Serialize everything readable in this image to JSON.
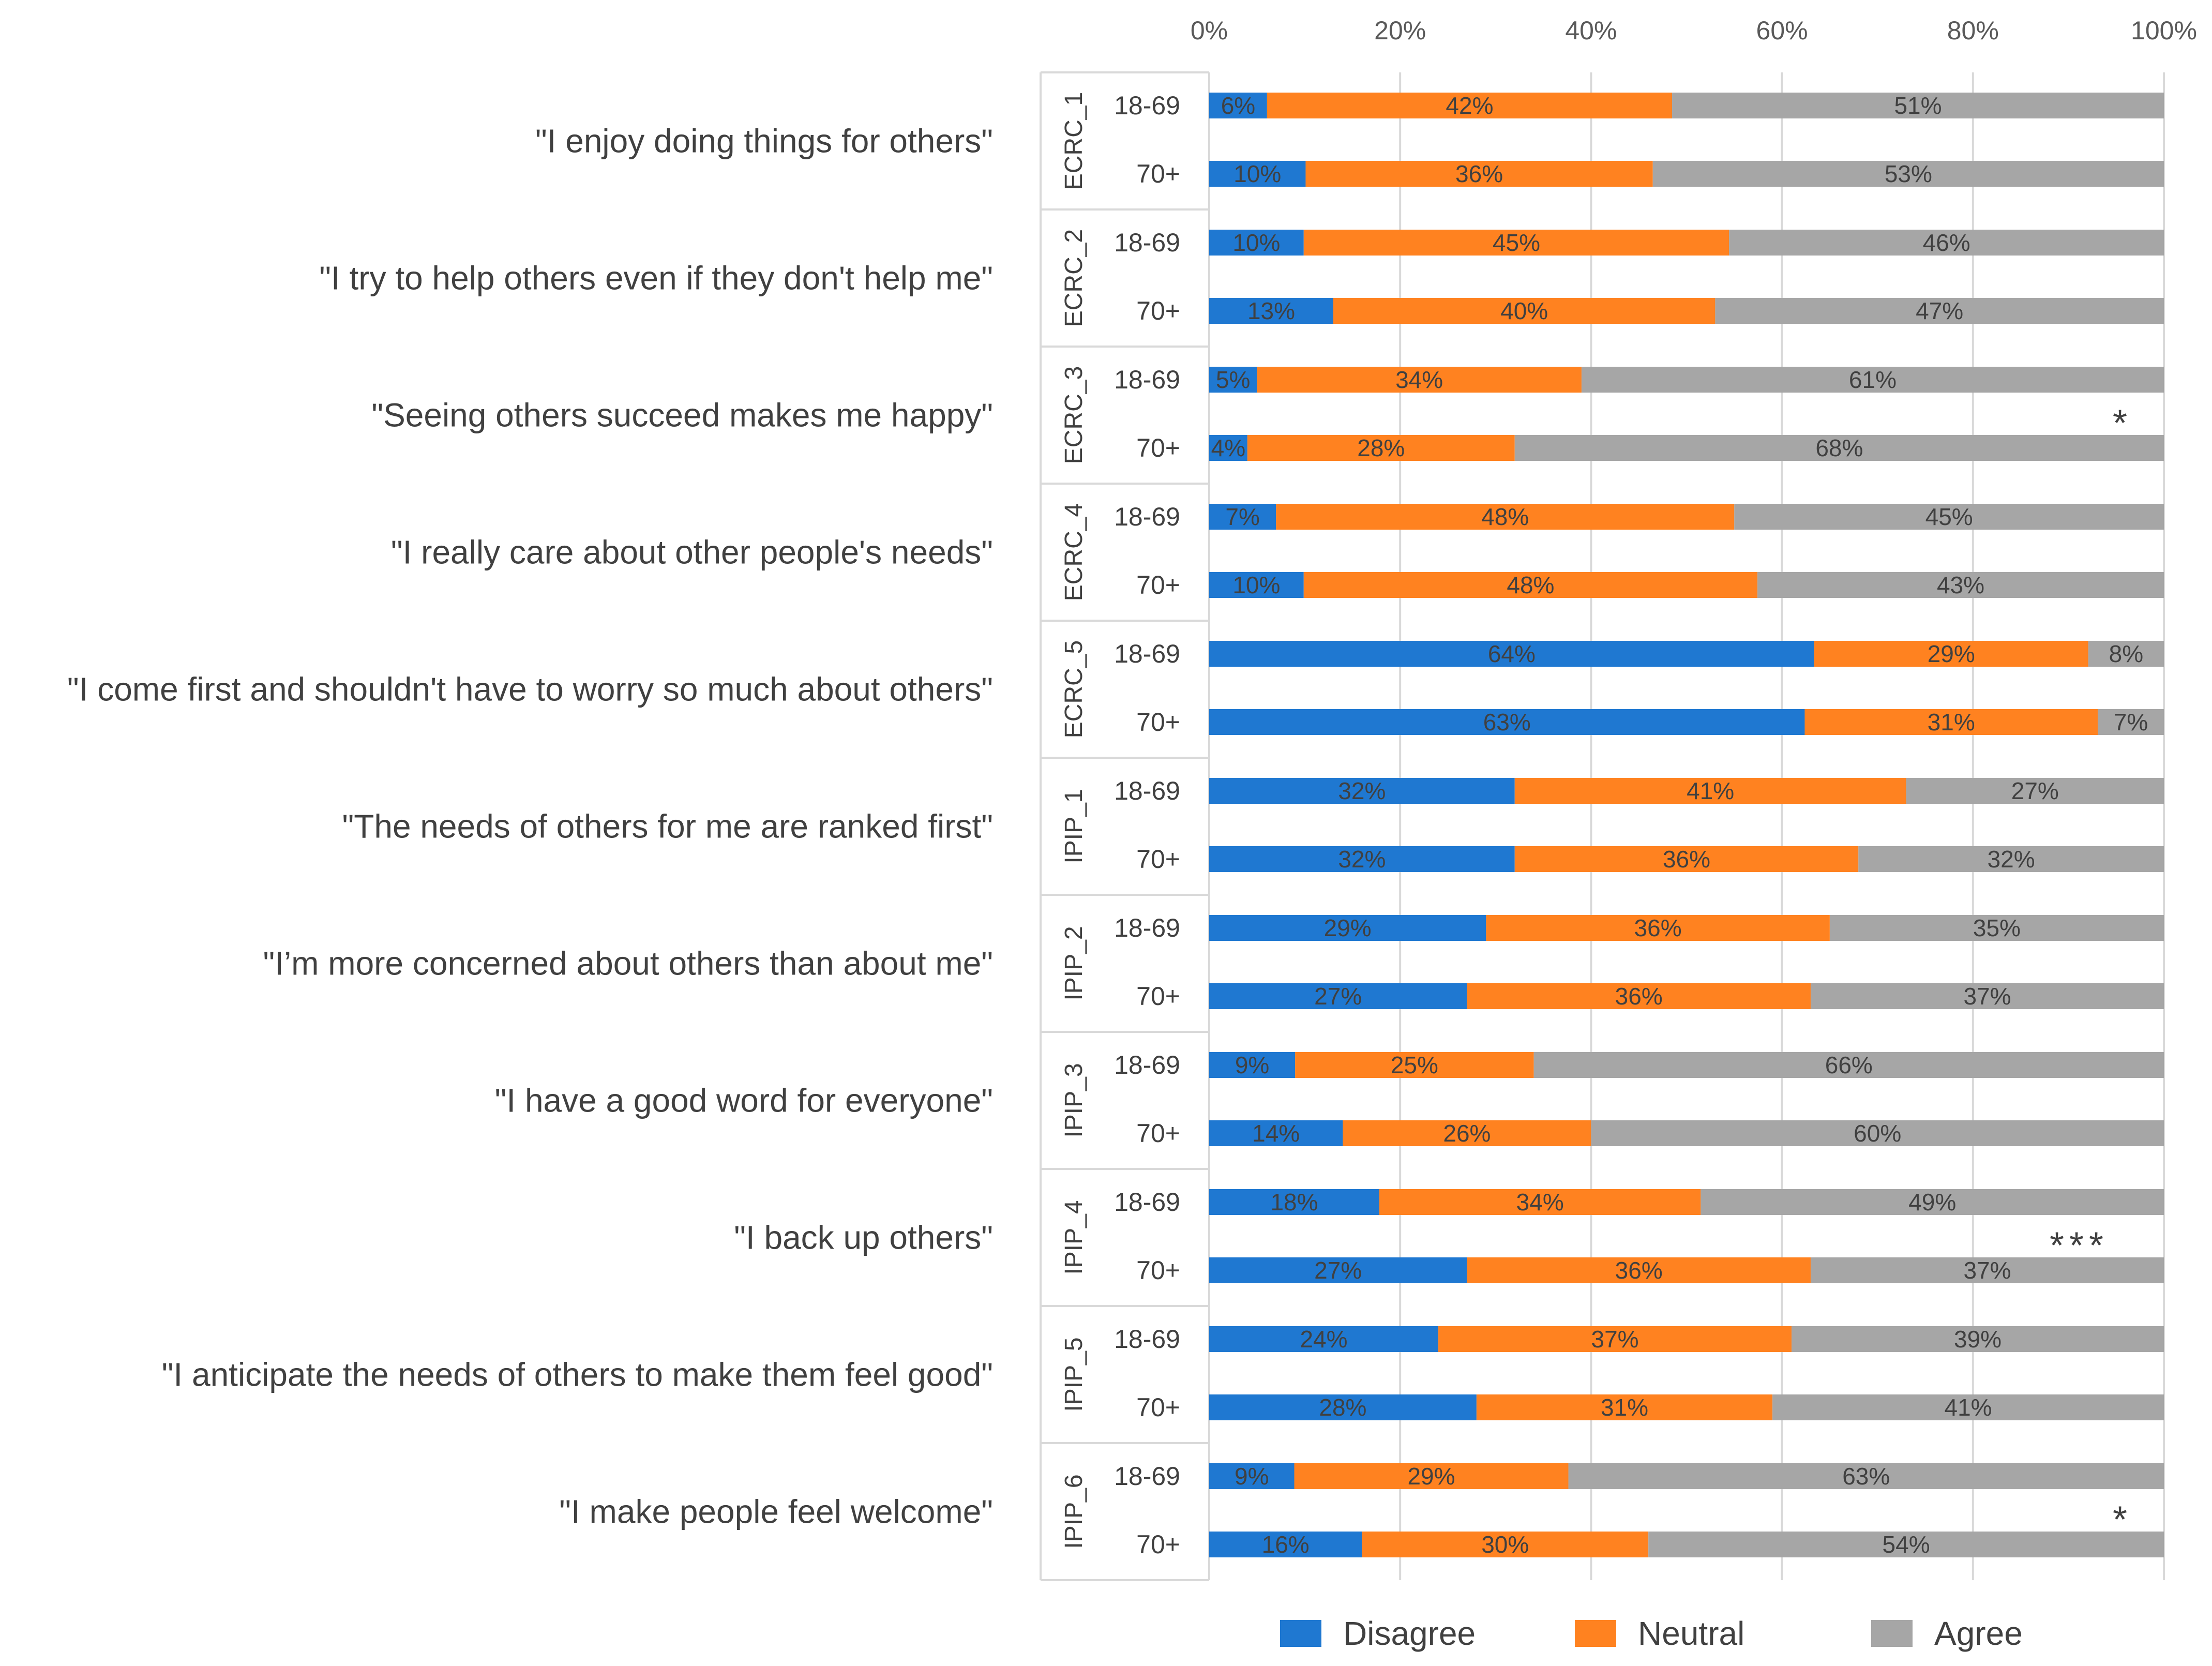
{
  "chart_data": {
    "type": "bar",
    "orientation": "horizontal",
    "stacked": "percent",
    "title": "",
    "xlabel": "",
    "ylabel": "",
    "xlim": [
      0,
      100
    ],
    "x_ticks": [
      "0%",
      "20%",
      "40%",
      "60%",
      "80%",
      "100%"
    ],
    "grid": true,
    "legend_position": "bottom",
    "series": [
      {
        "name": "Disagree",
        "color": "#1f78d1"
      },
      {
        "name": "Neutral",
        "color": "#ff8220"
      },
      {
        "name": "Agree",
        "color": "#a6a6a6"
      }
    ],
    "items": [
      {
        "item": "ECRC_1",
        "statement": "\"I enjoy doing things for others\"",
        "significance": "",
        "groups": [
          {
            "group": "18-69",
            "values": [
              6,
              42,
              51
            ],
            "labels": [
              "6%",
              "42%",
              "51%"
            ]
          },
          {
            "group": "70+",
            "values": [
              10,
              36,
              53
            ],
            "labels": [
              "10%",
              "36%",
              "53%"
            ]
          }
        ]
      },
      {
        "item": "ECRC_2",
        "statement": "\"I try to help others even if they don't help me\"",
        "significance": "",
        "groups": [
          {
            "group": "18-69",
            "values": [
              10,
              45,
              46
            ],
            "labels": [
              "10%",
              "45%",
              "46%"
            ]
          },
          {
            "group": "70+",
            "values": [
              13,
              40,
              47
            ],
            "labels": [
              "13%",
              "40%",
              "47%"
            ]
          }
        ]
      },
      {
        "item": "ECRC_3",
        "statement": "\"Seeing others succeed makes me happy\"",
        "significance": "*",
        "groups": [
          {
            "group": "18-69",
            "values": [
              5,
              34,
              61
            ],
            "labels": [
              "5%",
              "34%",
              "61%"
            ]
          },
          {
            "group": "70+",
            "values": [
              4,
              28,
              68
            ],
            "labels": [
              "4%",
              "28%",
              "68%"
            ]
          }
        ]
      },
      {
        "item": "ECRC_4",
        "statement": "\"I really care about other people's needs\"",
        "significance": "",
        "groups": [
          {
            "group": "18-69",
            "values": [
              7,
              48,
              45
            ],
            "labels": [
              "7%",
              "48%",
              "45%"
            ]
          },
          {
            "group": "70+",
            "values": [
              10,
              48,
              43
            ],
            "labels": [
              "10%",
              "48%",
              "43%"
            ]
          }
        ]
      },
      {
        "item": "ECRC_5",
        "statement": "\"I come first and shouldn't have to worry so much about others\"",
        "significance": "",
        "groups": [
          {
            "group": "18-69",
            "values": [
              64,
              29,
              8
            ],
            "labels": [
              "64%",
              "29%",
              "8%"
            ]
          },
          {
            "group": "70+",
            "values": [
              63,
              31,
              7
            ],
            "labels": [
              "63%",
              "31%",
              "7%"
            ]
          }
        ]
      },
      {
        "item": "IPIP_1",
        "statement": "\"The needs of others for me are ranked first\"",
        "significance": "",
        "groups": [
          {
            "group": "18-69",
            "values": [
              32,
              41,
              27
            ],
            "labels": [
              "32%",
              "41%",
              "27%"
            ]
          },
          {
            "group": "70+",
            "values": [
              32,
              36,
              32
            ],
            "labels": [
              "32%",
              "36%",
              "32%"
            ]
          }
        ]
      },
      {
        "item": "IPIP_2",
        "statement": "\"I’m more concerned about others than about me\"",
        "significance": "",
        "groups": [
          {
            "group": "18-69",
            "values": [
              29,
              36,
              35
            ],
            "labels": [
              "29%",
              "36%",
              "35%"
            ]
          },
          {
            "group": "70+",
            "values": [
              27,
              36,
              37
            ],
            "labels": [
              "27%",
              "36%",
              "37%"
            ]
          }
        ]
      },
      {
        "item": "IPIP_3",
        "statement": "\"I have a good word for everyone\"",
        "significance": "",
        "groups": [
          {
            "group": "18-69",
            "values": [
              9,
              25,
              66
            ],
            "labels": [
              "9%",
              "25%",
              "66%"
            ]
          },
          {
            "group": "70+",
            "values": [
              14,
              26,
              60
            ],
            "labels": [
              "14%",
              "26%",
              "60%"
            ]
          }
        ]
      },
      {
        "item": "IPIP_4",
        "statement": "\"I back up others\"",
        "significance": "***",
        "groups": [
          {
            "group": "18-69",
            "values": [
              18,
              34,
              49
            ],
            "labels": [
              "18%",
              "34%",
              "49%"
            ]
          },
          {
            "group": "70+",
            "values": [
              27,
              36,
              37
            ],
            "labels": [
              "27%",
              "36%",
              "37%"
            ]
          }
        ]
      },
      {
        "item": "IPIP_5",
        "statement": "\"I anticipate the needs of others to make them feel good\"",
        "significance": "",
        "groups": [
          {
            "group": "18-69",
            "values": [
              24,
              37,
              39
            ],
            "labels": [
              "24%",
              "37%",
              "39%"
            ]
          },
          {
            "group": "70+",
            "values": [
              28,
              31,
              41
            ],
            "labels": [
              "28%",
              "31%",
              "41%"
            ]
          }
        ]
      },
      {
        "item": "IPIP_6",
        "statement": "\"I make people feel welcome\"",
        "significance": "*",
        "groups": [
          {
            "group": "18-69",
            "values": [
              9,
              29,
              63
            ],
            "labels": [
              "9%",
              "29%",
              "63%"
            ]
          },
          {
            "group": "70+",
            "values": [
              16,
              30,
              54
            ],
            "labels": [
              "16%",
              "30%",
              "54%"
            ]
          }
        ]
      }
    ]
  }
}
